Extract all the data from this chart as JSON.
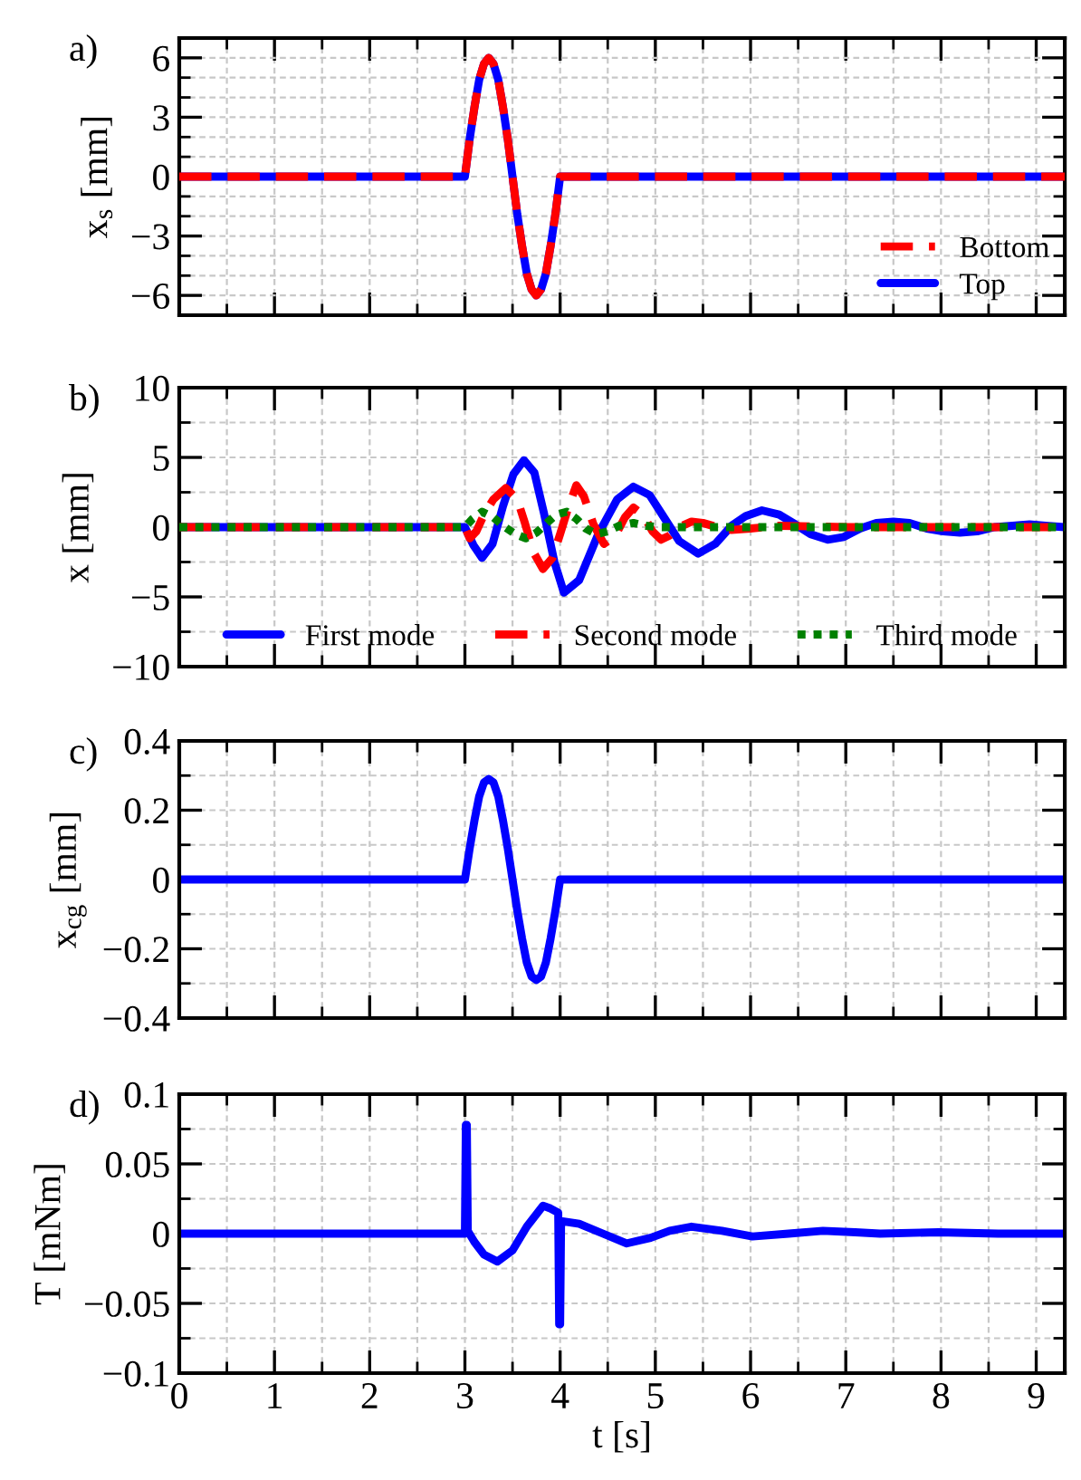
{
  "chart_data": [
    {
      "type": "line",
      "annotations": [
        "a)"
      ],
      "ylabel": "x$_{s}$ [mm]",
      "xlim": [
        0,
        9.3
      ],
      "ylim": [
        -7,
        7
      ],
      "grid": true,
      "legend": "bottom right",
      "tick_labels": "y",
      "line_style": "solid",
      "marker": "none",
      "xticks": [
        0,
        {
          "value": 0.5,
          "label": null
        },
        1,
        {
          "value": 1.5,
          "label": null
        },
        2,
        {
          "value": 2.5,
          "label": null
        },
        3,
        {
          "value": 3.5,
          "label": null
        },
        4,
        {
          "value": 4.5,
          "label": null
        },
        5,
        {
          "value": 5.5,
          "label": null
        },
        6,
        {
          "value": 6.5,
          "label": null
        },
        7,
        {
          "value": 7.5,
          "label": null
        },
        8,
        {
          "value": 8.5,
          "label": null
        },
        9
      ],
      "yticks": [
        {
          "value": -6,
          "label": "−6"
        },
        {
          "value": -5,
          "label": null
        },
        {
          "value": -4,
          "label": null
        },
        {
          "value": -3,
          "label": "−3"
        },
        {
          "value": -2,
          "label": null
        },
        {
          "value": -1,
          "label": null
        },
        0,
        {
          "value": 1,
          "label": null
        },
        {
          "value": 2,
          "label": null
        },
        3,
        {
          "value": 4,
          "label": null
        },
        {
          "value": 5,
          "label": null
        },
        6
      ],
      "x": [
        0,
        3,
        3.05,
        3.1,
        3.15,
        3.2,
        3.25,
        3.3,
        3.35,
        3.4,
        3.45,
        3.5,
        3.55,
        3.6,
        3.65,
        3.7,
        3.75,
        3.8,
        3.85,
        3.9,
        3.95,
        4,
        9.3
      ],
      "series": [
        {
          "name": "Bottom",
          "color": "#ff0000",
          "line_style": "dashed",
          "values": [
            0,
            0,
            1.9,
            3.5,
            4.9,
            5.7,
            6,
            5.7,
            4.9,
            3.5,
            1.9,
            0,
            -1.9,
            -3.5,
            -4.9,
            -5.7,
            -6,
            -5.7,
            -4.9,
            -3.5,
            -1.9,
            0,
            0
          ]
        },
        {
          "name": "Top",
          "color": "#0000ff",
          "line_style": "solid",
          "values": [
            0,
            0,
            1.9,
            3.5,
            4.9,
            5.7,
            6,
            5.7,
            4.9,
            3.5,
            1.9,
            0,
            -1.9,
            -3.5,
            -4.9,
            -5.7,
            -6,
            -5.7,
            -4.9,
            -3.5,
            -1.9,
            0,
            0
          ]
        }
      ]
    },
    {
      "type": "line",
      "annotations": [
        "b)"
      ],
      "ylabel": "x [mm]",
      "xlim": [
        0,
        9.3
      ],
      "ylim": [
        -10,
        10
      ],
      "grid": true,
      "legend": "bottom",
      "tick_labels": "y",
      "marker": "none",
      "xticks": [
        0,
        {
          "value": 0.5,
          "label": null
        },
        1,
        {
          "value": 1.5,
          "label": null
        },
        2,
        {
          "value": 2.5,
          "label": null
        },
        3,
        {
          "value": 3.5,
          "label": null
        },
        4,
        {
          "value": 4.5,
          "label": null
        },
        5,
        {
          "value": 5.5,
          "label": null
        },
        6,
        {
          "value": 6.5,
          "label": null
        },
        7,
        {
          "value": 7.5,
          "label": null
        },
        8,
        {
          "value": 8.5,
          "label": null
        },
        9
      ],
      "yticks": [
        {
          "value": -10,
          "label": "−10"
        },
        {
          "value": -7.5,
          "label": null
        },
        {
          "value": -5,
          "label": "−5"
        },
        {
          "value": -2.5,
          "label": null
        },
        0,
        {
          "value": 2.5,
          "label": null
        },
        5,
        {
          "value": 7.5,
          "label": null
        },
        10
      ],
      "series": [
        {
          "name": "First mode",
          "color": "#0000ff",
          "line_style": "solid",
          "x": [
            0,
            3,
            3.09,
            3.18,
            3.29,
            3.4,
            3.51,
            3.62,
            3.73,
            3.83,
            3.94,
            4.04,
            4.2,
            4.4,
            4.6,
            4.77,
            4.94,
            5.1,
            5.25,
            5.45,
            5.63,
            5.8,
            5.95,
            6.12,
            6.3,
            6.47,
            6.63,
            6.81,
            6.98,
            7.15,
            7.32,
            7.5,
            7.67,
            7.85,
            8.02,
            8.2,
            8.38,
            8.56,
            8.75,
            8.93,
            9.1,
            9.3
          ],
          "values": [
            0,
            0,
            -1.3,
            -2.2,
            -1.2,
            1.5,
            3.8,
            4.8,
            3.9,
            1.0,
            -2.5,
            -4.7,
            -3.8,
            -0.5,
            2.0,
            2.9,
            2.3,
            0.6,
            -1.0,
            -1.9,
            -1.2,
            0.1,
            0.8,
            1.2,
            0.9,
            0.2,
            -0.5,
            -0.9,
            -0.7,
            -0.1,
            0.3,
            0.4,
            0.3,
            -0.1,
            -0.3,
            -0.4,
            -0.3,
            0,
            0.1,
            0.2,
            0.1,
            0
          ]
        },
        {
          "name": "Second mode",
          "color": "#ff0000",
          "line_style": "dashed",
          "x": [
            0,
            3,
            3.05,
            3.12,
            3.2,
            3.3,
            3.43,
            3.55,
            3.63,
            3.72,
            3.82,
            3.92,
            4.0,
            4.09,
            4.17,
            4.25,
            4.35,
            4.46,
            4.58,
            4.68,
            4.77,
            4.87,
            4.97,
            5.06,
            5.15,
            5.25,
            5.38,
            5.5,
            5.65,
            5.8,
            6.0,
            6.3,
            7,
            8,
            9.3
          ],
          "values": [
            0,
            0,
            -0.8,
            -0.3,
            0.9,
            2.0,
            2.8,
            2.0,
            0.3,
            -1.8,
            -3,
            -2.2,
            -0.5,
            1.5,
            3,
            2.2,
            0.2,
            -1.2,
            -0.6,
            0.7,
            1.4,
            0.9,
            -0.3,
            -0.9,
            -0.6,
            0,
            0.4,
            0.3,
            0,
            -0.2,
            -0.1,
            0.1,
            0,
            0,
            0
          ]
        },
        {
          "name": "Third mode",
          "color": "#008000",
          "line_style": "dotted",
          "x": [
            0,
            3,
            3.08,
            3.18,
            3.3,
            3.42,
            3.53,
            3.64,
            3.75,
            3.86,
            3.96,
            4.07,
            4.17,
            4.27,
            4.38,
            4.5,
            4.62,
            4.77,
            4.9,
            5.05,
            5.3,
            6,
            9.3
          ],
          "values": [
            0,
            0,
            0.6,
            1.1,
            0.7,
            0,
            -0.5,
            -0.8,
            -0.4,
            0.3,
            0.9,
            1.1,
            0.6,
            -0.1,
            -0.5,
            -0.3,
            0.1,
            0.3,
            0.1,
            0,
            0,
            0,
            0
          ]
        }
      ]
    },
    {
      "type": "line",
      "annotations": [
        "c)"
      ],
      "ylabel": "x$_{cg}$ [mm]",
      "xlim": [
        0,
        9.3
      ],
      "ylim": [
        -0.4,
        0.4
      ],
      "grid": true,
      "tick_labels": "y",
      "line_style": "solid",
      "marker": "none",
      "xticks": [
        0,
        {
          "value": 0.5,
          "label": null
        },
        1,
        {
          "value": 1.5,
          "label": null
        },
        2,
        {
          "value": 2.5,
          "label": null
        },
        3,
        {
          "value": 3.5,
          "label": null
        },
        4,
        {
          "value": 4.5,
          "label": null
        },
        5,
        {
          "value": 5.5,
          "label": null
        },
        6,
        {
          "value": 6.5,
          "label": null
        },
        7,
        {
          "value": 7.5,
          "label": null
        },
        8,
        {
          "value": 8.5,
          "label": null
        },
        9
      ],
      "yticks": [
        {
          "value": -0.4,
          "label": "−0.4"
        },
        {
          "value": -0.3,
          "label": null
        },
        {
          "value": -0.2,
          "label": "−0.2"
        },
        {
          "value": -0.1,
          "label": null
        },
        0,
        {
          "value": 0.1,
          "label": null
        },
        0.2,
        {
          "value": 0.3,
          "label": null
        },
        0.4
      ],
      "x": [
        0,
        3,
        3.05,
        3.1,
        3.15,
        3.2,
        3.25,
        3.3,
        3.35,
        3.4,
        3.45,
        3.5,
        3.55,
        3.6,
        3.65,
        3.7,
        3.75,
        3.8,
        3.85,
        3.9,
        3.95,
        4,
        9.3
      ],
      "series": [
        {
          "color": "#0000ff",
          "values": [
            0,
            0,
            0.09,
            0.17,
            0.24,
            0.28,
            0.29,
            0.28,
            0.24,
            0.17,
            0.09,
            0,
            -0.09,
            -0.17,
            -0.24,
            -0.28,
            -0.29,
            -0.28,
            -0.24,
            -0.17,
            -0.09,
            0,
            0
          ]
        }
      ]
    },
    {
      "type": "line",
      "annotations": [
        "d)"
      ],
      "ylabel": "T [mNm]",
      "xlabel": "t [s]",
      "xlim": [
        0,
        9.3
      ],
      "ylim": [
        -0.1,
        0.1
      ],
      "grid": true,
      "line_style": "solid",
      "marker": "none",
      "xticks": [
        0,
        {
          "value": 0.5,
          "label": null
        },
        1,
        {
          "value": 1.5,
          "label": null
        },
        2,
        {
          "value": 2.5,
          "label": null
        },
        3,
        {
          "value": 3.5,
          "label": null
        },
        4,
        {
          "value": 4.5,
          "label": null
        },
        5,
        {
          "value": 5.5,
          "label": null
        },
        6,
        {
          "value": 6.5,
          "label": null
        },
        7,
        {
          "value": 7.5,
          "label": null
        },
        8,
        {
          "value": 8.5,
          "label": null
        },
        9
      ],
      "yticks": [
        {
          "value": -0.1,
          "label": "−0.1"
        },
        {
          "value": -0.075,
          "label": null
        },
        {
          "value": -0.05,
          "label": "−0.05"
        },
        {
          "value": -0.025,
          "label": null
        },
        0,
        {
          "value": 0.025,
          "label": null
        },
        0.05,
        {
          "value": 0.075,
          "label": null
        },
        0.1
      ],
      "x": [
        0,
        3,
        3.01,
        3.02,
        3.03,
        3.1,
        3.2,
        3.34,
        3.5,
        3.65,
        3.82,
        3.9,
        3.98,
        3.99,
        4.0,
        4.01,
        4.2,
        4.45,
        4.7,
        4.95,
        5.15,
        5.38,
        5.7,
        6.02,
        6.4,
        6.76,
        7.1,
        7.36,
        7.97,
        8.6,
        9.3
      ],
      "series": [
        {
          "color": "#0000ff",
          "values": [
            0,
            0,
            0.078,
            0.078,
            0.002,
            -0.006,
            -0.015,
            -0.02,
            -0.012,
            0.005,
            0.02,
            0.018,
            0.015,
            -0.065,
            -0.065,
            0.009,
            0.007,
            0,
            -0.007,
            -0.003,
            0.002,
            0.005,
            0.002,
            -0.002,
            0,
            0.002,
            0.001,
            0,
            0.001,
            0,
            0
          ]
        }
      ]
    }
  ]
}
